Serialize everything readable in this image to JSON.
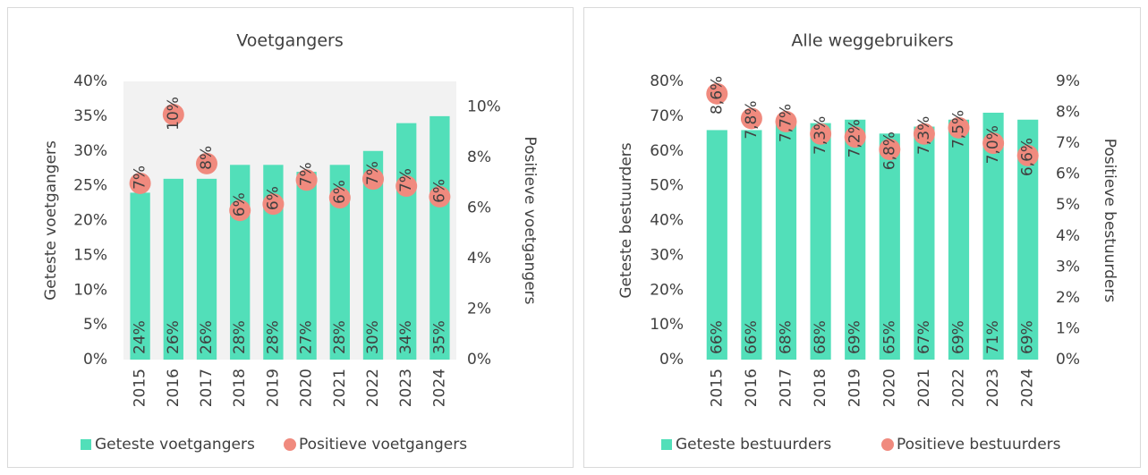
{
  "chart_data": [
    {
      "type": "bar",
      "title": "Voetgangers",
      "categories": [
        "2015",
        "2016",
        "2017",
        "2018",
        "2019",
        "2020",
        "2021",
        "2022",
        "2023",
        "2024"
      ],
      "y_label": "Geteste voetgangers",
      "y2_label": "Positieve voetgangers",
      "ylim": [
        0,
        40
      ],
      "yticks": [
        {
          "value": 0,
          "label": "0%"
        },
        {
          "value": 5,
          "label": "5%"
        },
        {
          "value": 10,
          "label": "10%"
        },
        {
          "value": 15,
          "label": "15%"
        },
        {
          "value": 20,
          "label": "20%"
        },
        {
          "value": 25,
          "label": "25%"
        },
        {
          "value": 30,
          "label": "30%"
        },
        {
          "value": 35,
          "label": "35%"
        },
        {
          "value": 40,
          "label": "40%"
        }
      ],
      "y2lim": [
        0,
        11
      ],
      "y2ticks": [
        {
          "value": 0,
          "label": "0%"
        },
        {
          "value": 2,
          "label": "2%"
        },
        {
          "value": 4,
          "label": "4%"
        },
        {
          "value": 6,
          "label": "6%"
        },
        {
          "value": 8,
          "label": "8%"
        },
        {
          "value": 10,
          "label": "10%"
        }
      ],
      "plot_background": "#f2f2f2",
      "series": [
        {
          "name": "Geteste voetgangers",
          "type": "bar",
          "color": "#52dfb9",
          "values": [
            24,
            26,
            26,
            28,
            28,
            27,
            28,
            30,
            34,
            35
          ],
          "value_labels": [
            "24%",
            "26%",
            "26%",
            "28%",
            "28%",
            "27%",
            "28%",
            "30%",
            "34%",
            "35%"
          ]
        },
        {
          "name": "Positieve voetgangers",
          "type": "scatter",
          "axis": "y2",
          "color": "#f08a7e",
          "values": [
            6.97,
            9.69,
            7.75,
            5.9,
            6.15,
            7.1,
            6.4,
            7.14,
            6.86,
            6.44
          ],
          "value_labels": [
            "7%",
            "10%",
            "8%",
            "6%",
            "6%",
            "7%",
            "6%",
            "7%",
            "7%",
            "6%"
          ]
        }
      ]
    },
    {
      "type": "bar",
      "title": "Alle weggebruikers",
      "categories": [
        "2015",
        "2016",
        "2017",
        "2018",
        "2019",
        "2020",
        "2021",
        "2022",
        "2023",
        "2024"
      ],
      "y_label": "Geteste bestuurders",
      "y2_label": "Positieve bestuurders",
      "ylim": [
        0,
        80
      ],
      "yticks": [
        {
          "value": 0,
          "label": "0%"
        },
        {
          "value": 10,
          "label": "10%"
        },
        {
          "value": 20,
          "label": "20%"
        },
        {
          "value": 30,
          "label": "30%"
        },
        {
          "value": 40,
          "label": "40%"
        },
        {
          "value": 50,
          "label": "50%"
        },
        {
          "value": 60,
          "label": "60%"
        },
        {
          "value": 70,
          "label": "70%"
        },
        {
          "value": 80,
          "label": "80%"
        }
      ],
      "y2lim": [
        0,
        9
      ],
      "y2ticks": [
        {
          "value": 0,
          "label": "0%"
        },
        {
          "value": 1,
          "label": "1%"
        },
        {
          "value": 2,
          "label": "2%"
        },
        {
          "value": 3,
          "label": "3%"
        },
        {
          "value": 4,
          "label": "4%"
        },
        {
          "value": 5,
          "label": "5%"
        },
        {
          "value": 6,
          "label": "6%"
        },
        {
          "value": 7,
          "label": "7%"
        },
        {
          "value": 8,
          "label": "8%"
        },
        {
          "value": 9,
          "label": "9%"
        }
      ],
      "plot_background": "#ffffff",
      "series": [
        {
          "name": "Geteste bestuurders",
          "type": "bar",
          "color": "#52dfb9",
          "values": [
            66,
            66,
            68,
            68,
            69,
            65,
            67,
            69,
            71,
            69
          ],
          "value_labels": [
            "66%",
            "66%",
            "68%",
            "68%",
            "69%",
            "65%",
            "67%",
            "69%",
            "71%",
            "69%"
          ]
        },
        {
          "name": "Positieve bestuurders",
          "type": "scatter",
          "axis": "y2",
          "color": "#f08a7e",
          "values": [
            8.6,
            7.8,
            7.7,
            7.3,
            7.2,
            6.8,
            7.3,
            7.5,
            7.0,
            6.6
          ],
          "value_labels": [
            "8,6%",
            "7,8%",
            "7,7%",
            "7,3%",
            "7,2%",
            "6,8%",
            "7,3%",
            "7,5%",
            "7,0%",
            "6,6%"
          ]
        }
      ]
    }
  ]
}
